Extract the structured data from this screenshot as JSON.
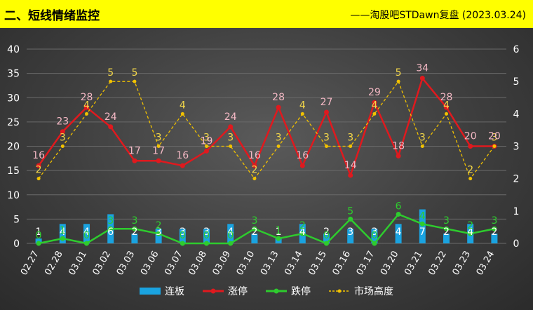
{
  "header": {
    "title": "二、短线情绪监控",
    "source": "——淘股吧STDawn复盘 (2023.03.24)"
  },
  "colors": {
    "banner": "#ffff00",
    "lianban": "#1aa3e0",
    "zhangting": "#e0191e",
    "dieting": "#2ecc2e",
    "market": "#f2c200",
    "label_zhangting": "#f3b8c4",
    "label_market": "#f4d84a"
  },
  "chart_data": {
    "type": "bar",
    "categories": [
      "02.27",
      "02.28",
      "03.01",
      "03.02",
      "03.03",
      "03.06",
      "03.07",
      "03.08",
      "03.09",
      "03.10",
      "03.13",
      "03.14",
      "03.15",
      "03.16",
      "03.17",
      "03.20",
      "03.21",
      "03.22",
      "03.23",
      "03.24"
    ],
    "series": [
      {
        "name": "连板",
        "type": "bar",
        "axis": "left",
        "values": [
          1,
          4,
          4,
          6,
          2,
          3,
          3,
          3,
          4,
          2,
          1,
          4,
          2,
          3,
          3,
          4,
          7,
          2,
          4,
          2
        ]
      },
      {
        "name": "涨停",
        "type": "line",
        "axis": "left",
        "values": [
          16,
          23,
          28,
          24,
          17,
          17,
          16,
          19,
          24,
          16,
          28,
          16,
          27,
          14,
          29,
          18,
          34,
          28,
          20,
          20
        ]
      },
      {
        "name": "跌停",
        "type": "line",
        "axis": "left",
        "values": [
          0,
          1,
          0,
          3,
          3,
          2,
          0,
          0,
          0,
          3,
          1,
          2,
          0,
          5,
          0,
          6,
          4,
          3,
          2,
          3
        ]
      },
      {
        "name": "市场高度",
        "type": "line",
        "axis": "right",
        "values": [
          2,
          3,
          4,
          5,
          5,
          3,
          4,
          3,
          3,
          2,
          3,
          4,
          3,
          3,
          4,
          5,
          3,
          4,
          2,
          3
        ]
      }
    ],
    "left_axis": {
      "min": 0,
      "max": 40,
      "ticks": [
        "0",
        "5",
        "10",
        "15",
        "20",
        "25",
        "30",
        "35",
        "40"
      ]
    },
    "right_axis": {
      "min": 0,
      "max": 6,
      "ticks": [
        "0",
        "1",
        "2",
        "3",
        "4",
        "5",
        "6"
      ]
    },
    "grid": true,
    "legend": "bottom"
  },
  "legend": {
    "items": [
      {
        "label": "连板"
      },
      {
        "label": "涨停"
      },
      {
        "label": "跌停"
      },
      {
        "label": "市场高度"
      }
    ]
  }
}
